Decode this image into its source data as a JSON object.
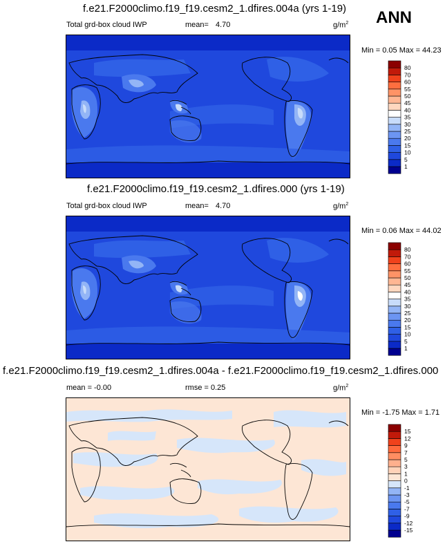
{
  "season": "ANN",
  "units": "g/m",
  "units_exp": "2",
  "panels": [
    {
      "title": "f.e21.F2000climo.f19_f19.cesm2_1.dfires.004a (yrs 1-19)",
      "left_label": "Total grd-box cloud IWP",
      "mean_label": "mean=",
      "mean_value": "4.70",
      "minmax": "Min =  0.05 Max =  44.23"
    },
    {
      "title": "f.e21.F2000climo.f19_f19.cesm2_1.dfires.000 (yrs 1-19)",
      "left_label": "Total grd-box cloud IWP",
      "mean_label": "mean=",
      "mean_value": "4.70",
      "minmax": "Min =  0.06 Max =  44.02"
    },
    {
      "title": "f.e21.F2000climo.f19_f19.cesm2_1.dfires.004a - f.e21.F2000climo.f19_f19.cesm2_1.dfires.000",
      "left_label": "mean =  -0.00",
      "rmse_label": "rmse =   0.25",
      "minmax": "Min =  -1.75 Max =   1.71"
    }
  ],
  "chart_data": [
    {
      "type": "heatmap",
      "title": "f.e21.F2000climo.f19_f19.cesm2_1.dfires.004a (yrs 1-19)",
      "variable": "Total grd-box cloud IWP",
      "units": "g/m2",
      "mean": 4.7,
      "min": 0.05,
      "max": 44.23,
      "colorbar_levels": [
        1,
        5,
        10,
        15,
        20,
        25,
        30,
        35,
        40,
        45,
        50,
        55,
        60,
        70,
        80
      ],
      "colors": [
        "#00008f",
        "#0b2ac7",
        "#1f48dd",
        "#2f60e6",
        "#4a79ee",
        "#6c95f2",
        "#93b5f6",
        "#c8dcfa",
        "#ffffff",
        "#ffd7bf",
        "#ffb693",
        "#ff9366",
        "#ff6e3f",
        "#f0421c",
        "#c11a0a",
        "#8b0000"
      ]
    },
    {
      "type": "heatmap",
      "title": "f.e21.F2000climo.f19_f19.cesm2_1.dfires.000 (yrs 1-19)",
      "variable": "Total grd-box cloud IWP",
      "units": "g/m2",
      "mean": 4.7,
      "min": 0.06,
      "max": 44.02,
      "colorbar_levels": [
        1,
        5,
        10,
        15,
        20,
        25,
        30,
        35,
        40,
        45,
        50,
        55,
        60,
        70,
        80
      ],
      "colors": [
        "#00008f",
        "#0b2ac7",
        "#1f48dd",
        "#2f60e6",
        "#4a79ee",
        "#6c95f2",
        "#93b5f6",
        "#c8dcfa",
        "#ffffff",
        "#ffd7bf",
        "#ffb693",
        "#ff9366",
        "#ff6e3f",
        "#f0421c",
        "#c11a0a",
        "#8b0000"
      ]
    },
    {
      "type": "heatmap",
      "title": "f.e21.F2000climo.f19_f19.cesm2_1.dfires.004a - f.e21.F2000climo.f19_f19.cesm2_1.dfires.000",
      "units": "g/m2",
      "mean": -0.0,
      "rmse": 0.25,
      "min": -1.75,
      "max": 1.71,
      "colorbar_levels": [
        -15,
        -12,
        -9,
        -7,
        -5,
        -3,
        -1,
        0,
        1,
        3,
        5,
        7,
        9,
        12,
        15
      ],
      "colors": [
        "#00008f",
        "#0b2ac7",
        "#1f48dd",
        "#2f60e6",
        "#4a79ee",
        "#6c95f2",
        "#93b5f6",
        "#d6e6fa",
        "#fde6d5",
        "#ffd2b8",
        "#ffb08d",
        "#ff8e62",
        "#ff6a3d",
        "#f0421c",
        "#c11a0a",
        "#8b0000"
      ]
    }
  ]
}
